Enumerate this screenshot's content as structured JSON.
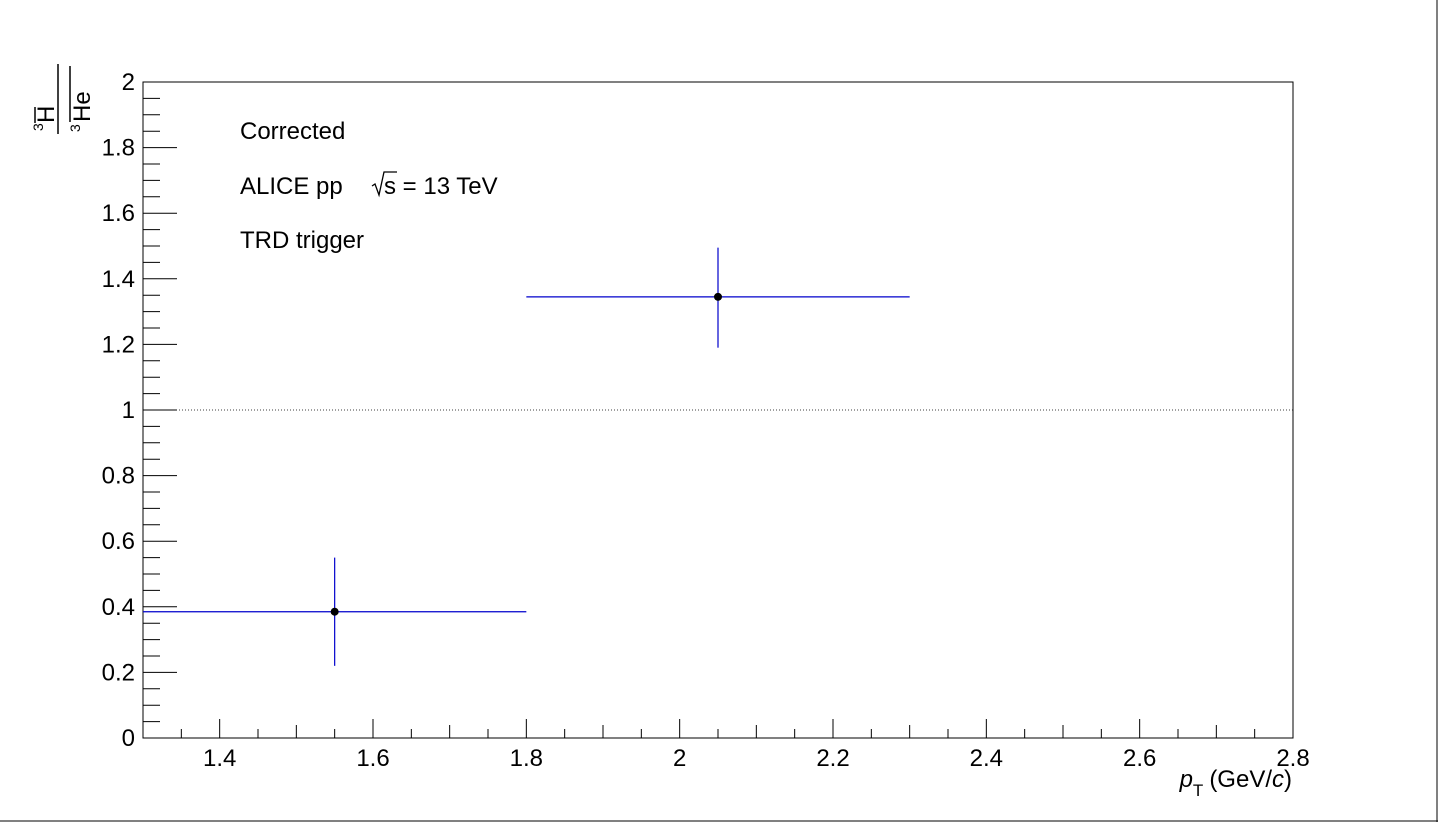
{
  "chart_data": {
    "type": "scatter",
    "annotations": [
      "Corrected",
      "ALICE pp",
      "s = 13 TeV",
      "TRD trigger"
    ],
    "xlabel": {
      "p": "p",
      "sub": "T",
      "rest": "(GeV/",
      "c": "c",
      "close": ")"
    },
    "ylabel": {
      "num_sup": "3",
      "num": "H",
      "den_sup": "3",
      "den": "He"
    },
    "xlim": [
      1.3,
      2.8
    ],
    "ylim": [
      0,
      2
    ],
    "x_major_ticks": [
      1.4,
      1.6,
      1.8,
      2.0,
      2.2,
      2.4,
      2.6,
      2.8
    ],
    "x_tick_labels": [
      "1.4",
      "1.6",
      "1.8",
      "2",
      "2.2",
      "2.4",
      "2.6",
      "2.8"
    ],
    "y_major_ticks": [
      0,
      0.2,
      0.4,
      0.6,
      0.8,
      1.0,
      1.2,
      1.4,
      1.6,
      1.8,
      2.0
    ],
    "y_tick_labels": [
      "0",
      "0.2",
      "0.4",
      "0.6",
      "0.8",
      "1",
      "1.2",
      "1.4",
      "1.6",
      "1.8",
      "2"
    ],
    "reference_line_y": 1,
    "grid": false,
    "series": [
      {
        "color": "#0000cc",
        "marker_color": "#000000",
        "points": [
          {
            "x": 1.55,
            "y": 0.385,
            "xlow": 1.3,
            "xhigh": 1.8,
            "ylow": 0.22,
            "yhigh": 0.55
          },
          {
            "x": 2.05,
            "y": 1.345,
            "xlow": 1.8,
            "xhigh": 2.3,
            "ylow": 1.19,
            "yhigh": 1.495
          }
        ]
      }
    ]
  }
}
